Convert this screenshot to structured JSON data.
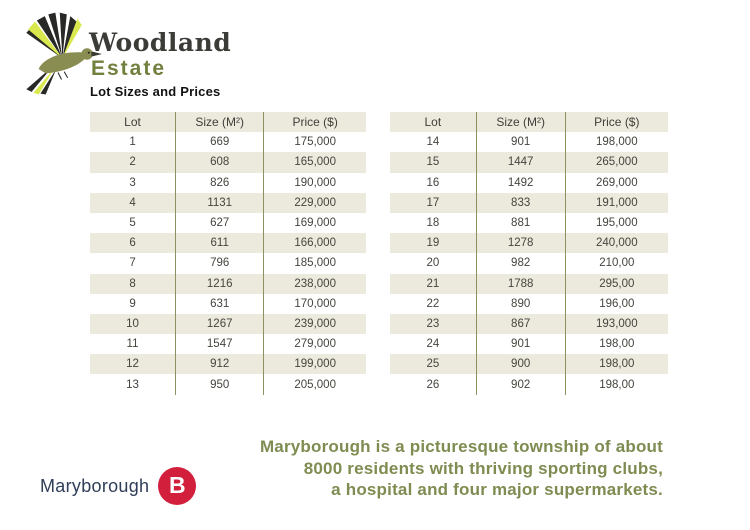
{
  "brand": {
    "name_top": "Woodland",
    "name_bottom": "Estate",
    "logo_icon": "bird-hummingbird-icon"
  },
  "section_title": "Lot Sizes and Prices",
  "tables": [
    {
      "headers": [
        "Lot",
        "Size (M²)",
        "Price ($)"
      ],
      "rows": [
        [
          "1",
          "669",
          "175,000"
        ],
        [
          "2",
          "608",
          "165,000"
        ],
        [
          "3",
          "826",
          "190,000"
        ],
        [
          "4",
          "1131",
          "229,000"
        ],
        [
          "5",
          "627",
          "169,000"
        ],
        [
          "6",
          "611",
          "166,000"
        ],
        [
          "7",
          "796",
          "185,000"
        ],
        [
          "8",
          "1216",
          "238,000"
        ],
        [
          "9",
          "631",
          "170,000"
        ],
        [
          "10",
          "1267",
          "239,000"
        ],
        [
          "11",
          "1547",
          "279,000"
        ],
        [
          "12",
          "912",
          "199,000"
        ],
        [
          "13",
          "950",
          "205,000"
        ]
      ]
    },
    {
      "headers": [
        "Lot",
        "Size (M²)",
        "Price ($)"
      ],
      "rows": [
        [
          "14",
          "901",
          "198,000"
        ],
        [
          "15",
          "1447",
          "265,000"
        ],
        [
          "16",
          "1492",
          "269,000"
        ],
        [
          "17",
          "833",
          "191,000"
        ],
        [
          "18",
          "881",
          "195,000"
        ],
        [
          "19",
          "1278",
          "240,000"
        ],
        [
          "20",
          "982",
          "210,00"
        ],
        [
          "21",
          "1788",
          "295,00"
        ],
        [
          "22",
          "890",
          "196,00"
        ],
        [
          "23",
          "867",
          "193,000"
        ],
        [
          "24",
          "901",
          "198,00"
        ],
        [
          "25",
          "900",
          "198,00"
        ],
        [
          "26",
          "902",
          "198,00"
        ]
      ]
    }
  ],
  "footer": {
    "paragraph_lines": [
      "Maryborough is a picturesque township of about",
      "8000 residents with thriving sporting clubs,",
      "a hospital and four major supermarkets."
    ],
    "logo_text": "Maryborough",
    "badge_letter": "B",
    "badge_icon": "maryborough-b-badge-icon"
  },
  "colors": {
    "accent_olive": "#72803E",
    "table_stripe": "#ECE9DD",
    "table_divider": "#8D905F",
    "footer_green": "#7E8C51",
    "maryborough_navy": "#2E3D59",
    "badge_red": "#D2203C"
  }
}
